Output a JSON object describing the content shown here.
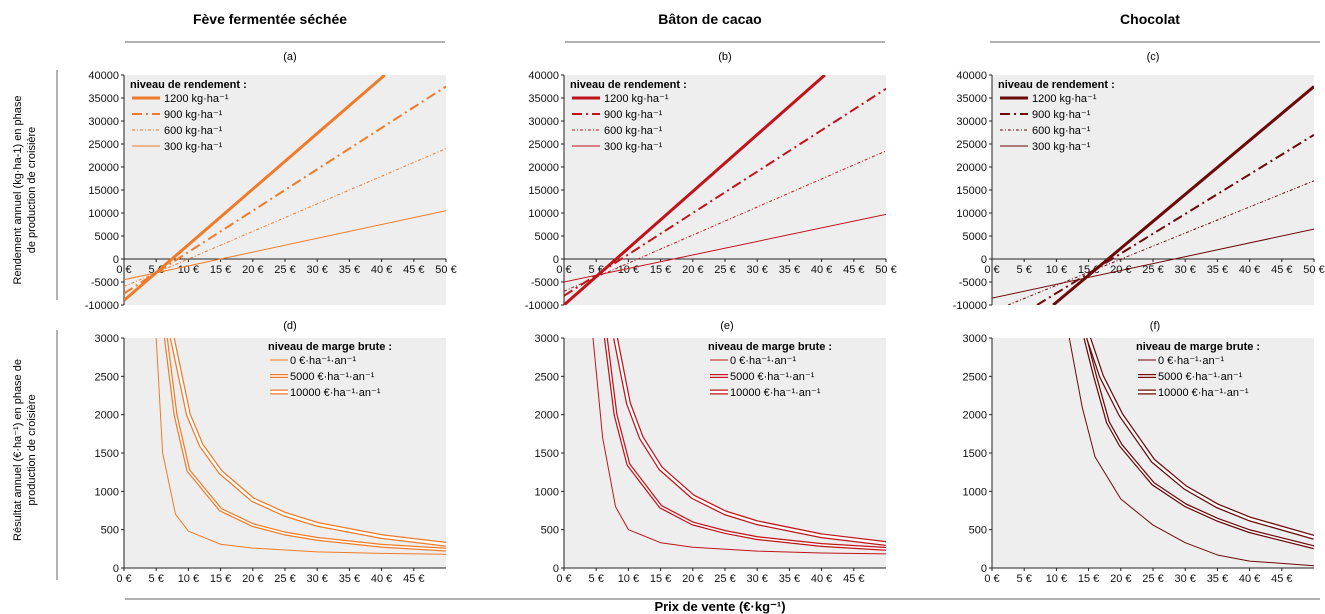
{
  "figure": {
    "columns": [
      "Fève fermentée séchée",
      "Bâton de cacao",
      "Chocolat"
    ],
    "row_ylabels": [
      [
        "Rendement annuel (kg·ha-1) en phase",
        "de production de croisière"
      ],
      [
        "Résultat annuel (€·ha⁻¹) en phase de",
        "production de croisière"
      ]
    ],
    "xlabel": "Prix de vente (€·kg⁻¹)"
  },
  "chart_data": [
    {
      "panel": "(a)",
      "type": "line",
      "xlim": [
        0,
        50
      ],
      "ylim": [
        -10000,
        40000
      ],
      "xticks": [
        "0 €",
        "5 €",
        "10 €",
        "15 €",
        "20 €",
        "25 €",
        "30 €",
        "35 €",
        "40 €",
        "45 €",
        "50 €"
      ],
      "yticks": [
        "-10000",
        "-5000",
        "0",
        "5000",
        "10000",
        "15000",
        "20000",
        "25000",
        "30000",
        "35000",
        "40000"
      ],
      "legend_title": "niveau de rendement :",
      "color": "#EE7B2A",
      "series": [
        {
          "name": "1200 kg·ha⁻¹",
          "style": "solid",
          "width": 3,
          "points": [
            [
              0,
              -9000
            ],
            [
              40.5,
              40000
            ]
          ]
        },
        {
          "name": "900 kg·ha⁻¹",
          "style": "dashdot",
          "width": 2,
          "points": [
            [
              0,
              -7500
            ],
            [
              50,
              37500
            ]
          ]
        },
        {
          "name": "600 kg·ha⁻¹",
          "style": "dotdash",
          "width": 1,
          "points": [
            [
              0,
              -6000
            ],
            [
              50,
              24000
            ]
          ]
        },
        {
          "name": "300 kg·ha⁻¹",
          "style": "solid",
          "width": 1,
          "points": [
            [
              0,
              -4500
            ],
            [
              50,
              10500
            ]
          ]
        }
      ]
    },
    {
      "panel": "(b)",
      "type": "line",
      "xlim": [
        0,
        50
      ],
      "ylim": [
        -10000,
        40000
      ],
      "xticks": [
        "0 €",
        "5 €",
        "10 €",
        "15 €",
        "20 €",
        "25 €",
        "30 €",
        "35 €",
        "40 €",
        "45 €",
        "50 €"
      ],
      "yticks": [
        "-10000",
        "-5000",
        "0",
        "5000",
        "10000",
        "15000",
        "20000",
        "25000",
        "30000",
        "35000",
        "40000"
      ],
      "legend_title": "niveau de rendement :",
      "color": "#C0141C",
      "series": [
        {
          "name": "1200 kg·ha⁻¹",
          "style": "solid",
          "width": 3,
          "points": [
            [
              0,
              -10000
            ],
            [
              40.5,
              40000
            ]
          ]
        },
        {
          "name": "900 kg·ha⁻¹",
          "style": "dashdot",
          "width": 2,
          "points": [
            [
              0,
              -8000
            ],
            [
              50,
              37000
            ]
          ]
        },
        {
          "name": "600 kg·ha⁻¹",
          "style": "dotdash",
          "width": 1,
          "points": [
            [
              0,
              -7000
            ],
            [
              50,
              23500
            ]
          ]
        },
        {
          "name": "300 kg·ha⁻¹",
          "style": "solid",
          "width": 1,
          "points": [
            [
              0,
              -5000
            ],
            [
              50,
              9700
            ]
          ]
        }
      ]
    },
    {
      "panel": "(c)",
      "type": "line",
      "xlim": [
        0,
        50
      ],
      "ylim": [
        -10000,
        40000
      ],
      "xticks": [
        "0 €",
        "5 €",
        "10 €",
        "15 €",
        "20 €",
        "25 €",
        "30 €",
        "35 €",
        "40 €",
        "45 €",
        "50 €"
      ],
      "yticks": [
        "-10000",
        "-5000",
        "0",
        "5000",
        "10000",
        "15000",
        "20000",
        "25000",
        "30000",
        "35000",
        "40000"
      ],
      "legend_title": "niveau de rendement :",
      "color": "#6B0A0A",
      "series": [
        {
          "name": "1200 kg·ha⁻¹",
          "style": "solid",
          "width": 3,
          "points": [
            [
              9.5,
              -10000
            ],
            [
              50,
              37500
            ]
          ]
        },
        {
          "name": "900 kg·ha⁻¹",
          "style": "dashdot",
          "width": 2,
          "points": [
            [
              7,
              -10000
            ],
            [
              50,
              27000
            ]
          ]
        },
        {
          "name": "600 kg·ha⁻¹",
          "style": "dotdash",
          "width": 1,
          "points": [
            [
              2.5,
              -10000
            ],
            [
              50,
              17000
            ]
          ]
        },
        {
          "name": "300 kg·ha⁻¹",
          "style": "solid",
          "width": 1,
          "points": [
            [
              0,
              -8500
            ],
            [
              50,
              6500
            ]
          ]
        }
      ]
    },
    {
      "panel": "(d)",
      "type": "line",
      "xlim": [
        0,
        50
      ],
      "ylim": [
        0,
        3000
      ],
      "xticks": [
        "0 €",
        "5 €",
        "10 €",
        "15 €",
        "20 €",
        "25 €",
        "30 €",
        "35 €",
        "40 €",
        "45 €"
      ],
      "yticks": [
        "0",
        "500",
        "1000",
        "1500",
        "2000",
        "2500",
        "3000"
      ],
      "legend_title": "niveau de marge brute :",
      "color": "#EE7B2A",
      "series": [
        {
          "name": "0 €·ha⁻¹·an⁻¹",
          "style": "single",
          "points": [
            [
              5,
              3000
            ],
            [
              6,
              1500
            ],
            [
              8,
              700
            ],
            [
              10,
              480
            ],
            [
              15,
              310
            ],
            [
              20,
              260
            ],
            [
              30,
              210
            ],
            [
              40,
              190
            ],
            [
              50,
              180
            ]
          ]
        },
        {
          "name": "5000 €·ha⁻¹·an⁻¹",
          "style": "double",
          "points": [
            [
              6.5,
              3000
            ],
            [
              8,
              2000
            ],
            [
              10,
              1270
            ],
            [
              15,
              760
            ],
            [
              20,
              560
            ],
            [
              25,
              450
            ],
            [
              30,
              380
            ],
            [
              40,
              290
            ],
            [
              50,
              240
            ]
          ]
        },
        {
          "name": "10000 €·ha⁻¹·an⁻¹",
          "style": "double-thick",
          "points": [
            [
              7.5,
              3000
            ],
            [
              10,
              2000
            ],
            [
              12,
              1600
            ],
            [
              15,
              1250
            ],
            [
              20,
              890
            ],
            [
              25,
              700
            ],
            [
              30,
              570
            ],
            [
              40,
              410
            ],
            [
              50,
              310
            ]
          ]
        }
      ]
    },
    {
      "panel": "(e)",
      "type": "line",
      "xlim": [
        0,
        50
      ],
      "ylim": [
        0,
        3000
      ],
      "xticks": [
        "0 €",
        "5 €",
        "10 €",
        "15 €",
        "20 €",
        "25 €",
        "30 €",
        "35 €",
        "40 €",
        "45 €"
      ],
      "yticks": [
        "0",
        "500",
        "1000",
        "1500",
        "2000",
        "2500",
        "3000"
      ],
      "legend_title": "niveau de marge brute :",
      "color": "#C0141C",
      "series": [
        {
          "name": "0 €·ha⁻¹·an⁻¹",
          "style": "single",
          "points": [
            [
              4.5,
              3000
            ],
            [
              6,
              1700
            ],
            [
              8,
              800
            ],
            [
              10,
              500
            ],
            [
              15,
              330
            ],
            [
              20,
              270
            ],
            [
              30,
              220
            ],
            [
              40,
              195
            ],
            [
              50,
              185
            ]
          ]
        },
        {
          "name": "5000 €·ha⁻¹·an⁻¹",
          "style": "double",
          "points": [
            [
              6.5,
              3000
            ],
            [
              8,
              2000
            ],
            [
              10,
              1350
            ],
            [
              15,
              800
            ],
            [
              20,
              580
            ],
            [
              25,
              470
            ],
            [
              30,
              390
            ],
            [
              40,
              300
            ],
            [
              50,
              250
            ]
          ]
        },
        {
          "name": "10000 €·ha⁻¹·an⁻¹",
          "style": "double-thick",
          "points": [
            [
              8,
              3000
            ],
            [
              10,
              2150
            ],
            [
              12,
              1700
            ],
            [
              15,
              1300
            ],
            [
              20,
              930
            ],
            [
              25,
              720
            ],
            [
              30,
              590
            ],
            [
              40,
              420
            ],
            [
              50,
              320
            ]
          ]
        }
      ]
    },
    {
      "panel": "(f)",
      "type": "line",
      "xlim": [
        0,
        50
      ],
      "ylim": [
        0,
        3000
      ],
      "xticks": [
        "0 €",
        "5 €",
        "10 €",
        "15 €",
        "20 €",
        "25 €",
        "30 €",
        "35 €",
        "40 €",
        "45 €"
      ],
      "yticks": [
        "0",
        "500",
        "1000",
        "1500",
        "2000",
        "2500",
        "3000"
      ],
      "legend_title": "niveau de marge brute :",
      "color": "#6B0A0A",
      "series": [
        {
          "name": "0 €·ha⁻¹·an⁻¹",
          "style": "single",
          "points": [
            [
              12,
              3000
            ],
            [
              14,
              2100
            ],
            [
              16,
              1450
            ],
            [
              20,
              900
            ],
            [
              25,
              560
            ],
            [
              30,
              330
            ],
            [
              35,
              170
            ],
            [
              40,
              90
            ],
            [
              50,
              30
            ]
          ]
        },
        {
          "name": "5000 €·ha⁻¹·an⁻¹",
          "style": "double",
          "points": [
            [
              14.5,
              3000
            ],
            [
              16,
              2500
            ],
            [
              18,
              1900
            ],
            [
              20,
              1600
            ],
            [
              25,
              1100
            ],
            [
              30,
              820
            ],
            [
              35,
              630
            ],
            [
              40,
              480
            ],
            [
              50,
              270
            ]
          ]
        },
        {
          "name": "10000 €·ha⁻¹·an⁻¹",
          "style": "double-thick",
          "points": [
            [
              15,
              3000
            ],
            [
              17,
              2500
            ],
            [
              20,
              2000
            ],
            [
              25,
              1400
            ],
            [
              30,
              1050
            ],
            [
              35,
              810
            ],
            [
              40,
              640
            ],
            [
              50,
              400
            ]
          ]
        }
      ]
    }
  ]
}
